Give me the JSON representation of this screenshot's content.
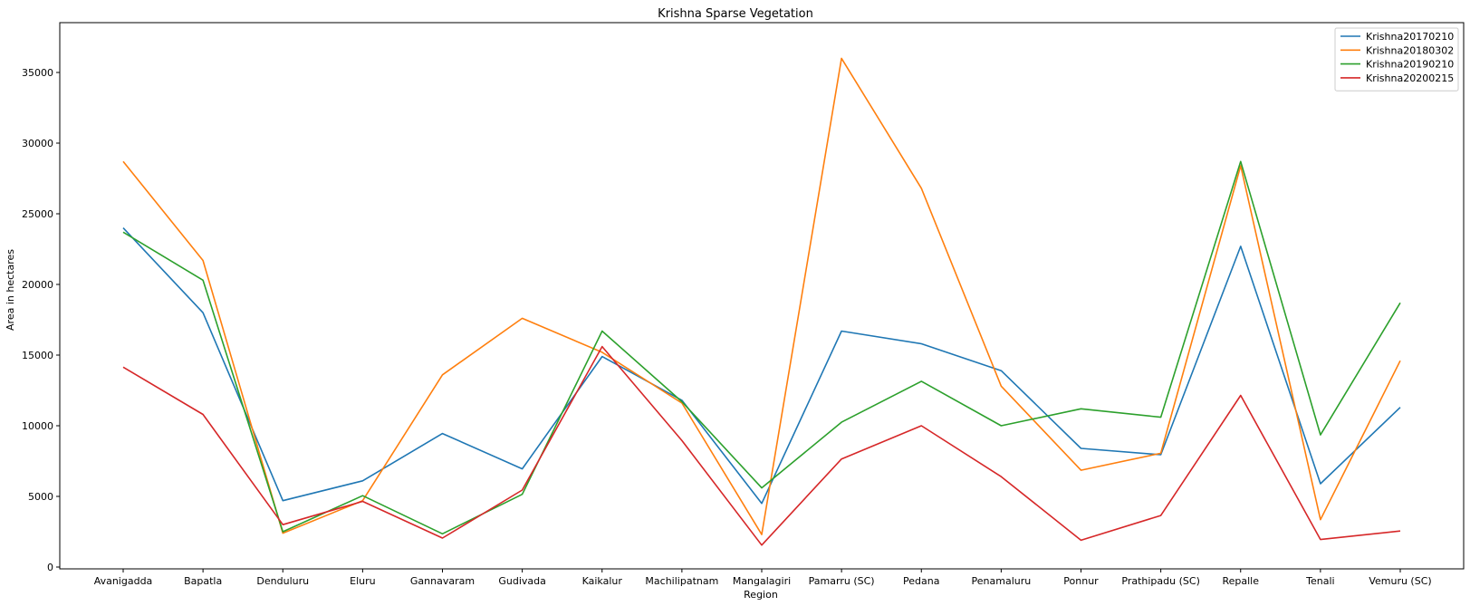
{
  "chart_data": {
    "type": "line",
    "title": "Krishna Sparse Vegetation",
    "xlabel": "Region",
    "ylabel": "Area in hectares",
    "ylim": [
      0,
      37500
    ],
    "yticks": [
      0,
      5000,
      10000,
      15000,
      20000,
      25000,
      30000,
      35000
    ],
    "grid": false,
    "legend_position": "top-right",
    "categories": [
      "Avanigadda",
      "Bapatla",
      "Denduluru",
      "Eluru",
      "Gannavaram",
      "Gudivada",
      "Kaikalur",
      "Machilipatnam",
      "Mangalagiri",
      "Pamarru (SC)",
      "Pedana",
      "Penamaluru",
      "Ponnur",
      "Prathipadu (SC)",
      "Repalle",
      "Tenali",
      "Vemuru (SC)"
    ],
    "series": [
      {
        "name": "Krishna20170210",
        "color": "#1f77b4",
        "values": [
          24000,
          18000,
          4700,
          6100,
          9450,
          6950,
          14900,
          11800,
          4500,
          16700,
          15800,
          13900,
          8400,
          7950,
          22700,
          5900,
          11300
        ]
      },
      {
        "name": "Krishna20180302",
        "color": "#ff7f0e",
        "values": [
          28700,
          21700,
          2400,
          4700,
          13600,
          17600,
          15200,
          11600,
          2300,
          36000,
          26800,
          12800,
          6850,
          8050,
          28400,
          3350,
          14600
        ]
      },
      {
        "name": "Krishna20190210",
        "color": "#2ca02c",
        "values": [
          23700,
          20300,
          2500,
          5050,
          2350,
          5150,
          16700,
          11700,
          5600,
          10250,
          13150,
          10000,
          11200,
          10600,
          28700,
          9350,
          18700
        ]
      },
      {
        "name": "Krishna20200215",
        "color": "#d62728",
        "values": [
          14150,
          10800,
          3000,
          4650,
          2050,
          5450,
          15600,
          8950,
          1550,
          7650,
          10000,
          6400,
          1900,
          3650,
          12150,
          1950,
          2550
        ]
      }
    ]
  }
}
